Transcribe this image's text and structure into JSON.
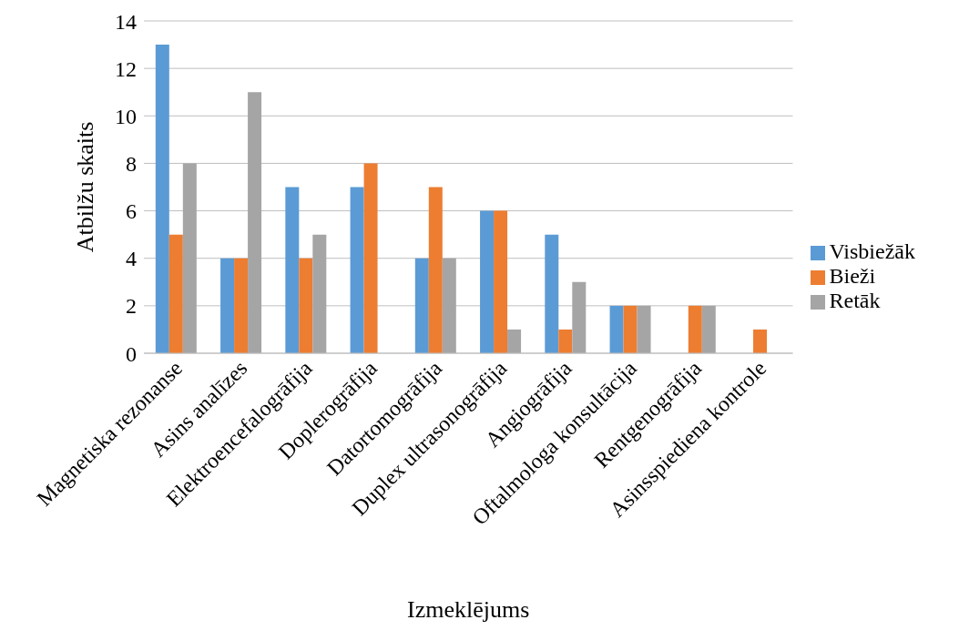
{
  "chart_data": {
    "type": "bar",
    "xlabel": "Izmeklējums",
    "ylabel": "Atbilžu skaits",
    "categories": [
      "Magnetiska rezonanse",
      "Asins analīzes",
      "Elektroencefalogrāfija",
      "Doplerogrāfija",
      "Datortomogrāfija",
      "Duplex ultrasonogrāfija",
      "Angiogrāfija",
      "Oftalmologa konsultācija",
      "Rentgenogrāfija",
      "Asinsspiediena kontrole"
    ],
    "series": [
      {
        "name": "Visbiežāk",
        "color": "#5b9bd5",
        "values": [
          13,
          4,
          7,
          7,
          4,
          6,
          5,
          2,
          0,
          0
        ]
      },
      {
        "name": "Bieži",
        "color": "#ed7d31",
        "values": [
          5,
          4,
          4,
          8,
          7,
          6,
          1,
          2,
          2,
          1
        ]
      },
      {
        "name": "Retāk",
        "color": "#a5a5a5",
        "values": [
          8,
          11,
          5,
          0,
          4,
          1,
          3,
          2,
          2,
          0
        ]
      }
    ],
    "ylim": [
      0,
      14
    ],
    "yticks": [
      0,
      2,
      4,
      6,
      8,
      10,
      12,
      14
    ],
    "grid": "y",
    "legend": "right"
  }
}
